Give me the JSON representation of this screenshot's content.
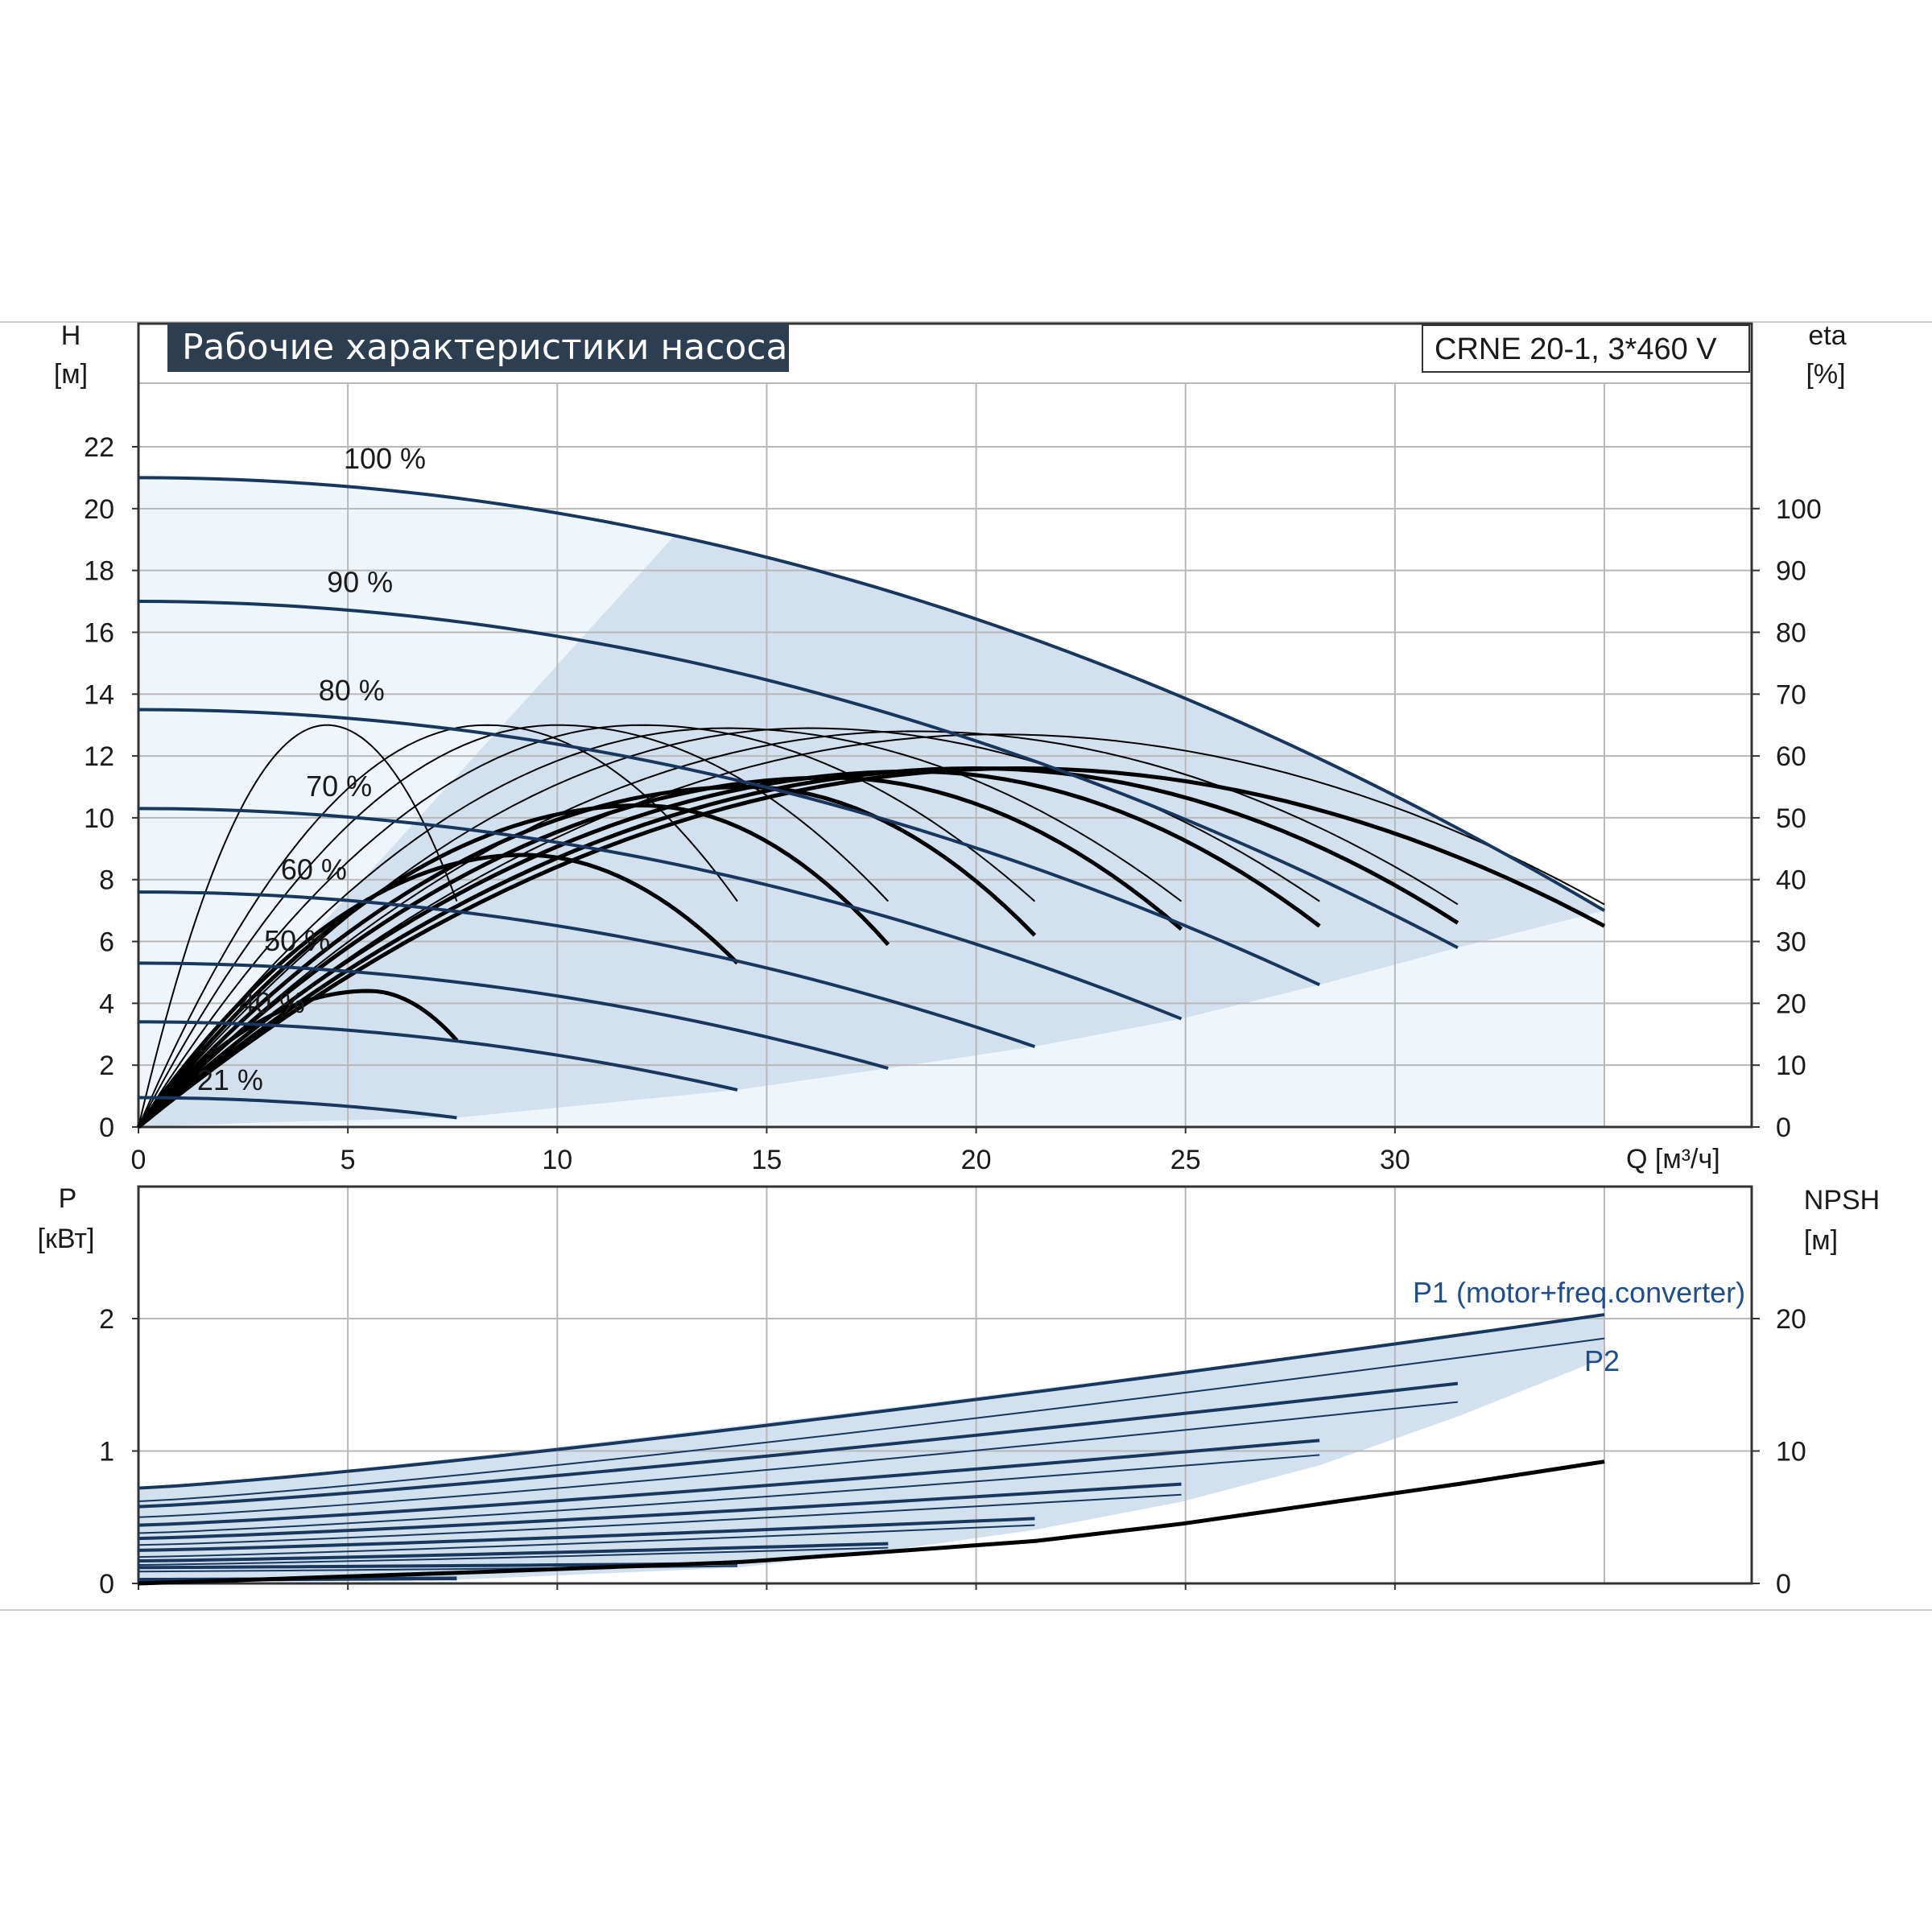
{
  "title": "Рабочие характеристики насоса",
  "model": "CRNE 20-1, 3*460 V",
  "colors": {
    "curve": "#17375e",
    "efficiency": "#000000",
    "band_light": "#eef6fc",
    "band_dark": "#d3e0ee",
    "grid": "#b8b8b8",
    "label": "#1f4e8c"
  },
  "chart_data": [
    {
      "type": "line",
      "xlabel": "Q [м³/ч]",
      "ylabel_name": "H",
      "ylabel_unit": "[м]",
      "y2label_name": "eta",
      "y2label_unit": "[%]",
      "xlim": [
        0,
        35
      ],
      "ylim": [
        0,
        22
      ],
      "y2lim": [
        0,
        100
      ],
      "x_ticks": [
        "0",
        "5",
        "10",
        "15",
        "20",
        "25",
        "30"
      ],
      "y_ticks": [
        "0",
        "2",
        "4",
        "6",
        "8",
        "10",
        "12",
        "14",
        "16",
        "18",
        "20",
        "22"
      ],
      "y2_ticks": [
        "0",
        "10",
        "20",
        "30",
        "40",
        "50",
        "60",
        "70",
        "80",
        "90",
        "100"
      ],
      "grid": true,
      "head_curves": [
        {
          "name": "100 %",
          "h0": 21.0,
          "qmax": 35.0,
          "hend": 7.0
        },
        {
          "name": "90 %",
          "h0": 17.0,
          "qmax": 31.5,
          "hend": 5.8
        },
        {
          "name": "80 %",
          "h0": 13.5,
          "qmax": 28.2,
          "hend": 4.6
        },
        {
          "name": "70 %",
          "h0": 10.3,
          "qmax": 24.9,
          "hend": 3.5
        },
        {
          "name": "60 %",
          "h0": 7.6,
          "qmax": 21.4,
          "hend": 2.6
        },
        {
          "name": "50 %",
          "h0": 5.3,
          "qmax": 17.9,
          "hend": 1.9
        },
        {
          "name": "40 %",
          "h0": 3.4,
          "qmax": 14.3,
          "hend": 1.2
        },
        {
          "name": "21 %",
          "h0": 0.95,
          "qmax": 7.6,
          "hend": 0.3
        }
      ],
      "efficiency_curves": [
        {
          "qpeak": 4.5,
          "peak": 13.0,
          "qend": 7.6,
          "hend": 7.3,
          "bold": false
        },
        {
          "qpeak": 8.3,
          "peak": 13.0,
          "qend": 14.3,
          "hend": 7.3,
          "bold": false
        },
        {
          "qpeak": 10.0,
          "peak": 13.0,
          "qend": 17.9,
          "hend": 7.3,
          "bold": false
        },
        {
          "qpeak": 12.0,
          "peak": 13.0,
          "qend": 21.4,
          "hend": 7.3,
          "bold": false
        },
        {
          "qpeak": 14.0,
          "peak": 12.9,
          "qend": 24.9,
          "hend": 7.3,
          "bold": false
        },
        {
          "qpeak": 16.0,
          "peak": 12.9,
          "qend": 28.2,
          "hend": 7.3,
          "bold": false
        },
        {
          "qpeak": 18.5,
          "peak": 12.8,
          "qend": 31.5,
          "hend": 7.2,
          "bold": false
        },
        {
          "qpeak": 20.5,
          "peak": 12.7,
          "qend": 35.0,
          "hend": 7.2,
          "bold": false
        },
        {
          "qpeak": 5.5,
          "peak": 4.4,
          "qend": 7.6,
          "hend": 2.8,
          "bold": true
        },
        {
          "qpeak": 9.2,
          "peak": 8.8,
          "qend": 14.3,
          "hend": 5.3,
          "bold": true
        },
        {
          "qpeak": 12.0,
          "peak": 10.4,
          "qend": 17.9,
          "hend": 5.9,
          "bold": true
        },
        {
          "qpeak": 14.5,
          "peak": 11.0,
          "qend": 21.4,
          "hend": 6.2,
          "bold": true
        },
        {
          "qpeak": 16.5,
          "peak": 11.3,
          "qend": 24.9,
          "hend": 6.4,
          "bold": true
        },
        {
          "qpeak": 18.5,
          "peak": 11.5,
          "qend": 28.2,
          "hend": 6.5,
          "bold": true
        },
        {
          "qpeak": 20.0,
          "peak": 11.6,
          "qend": 31.5,
          "hend": 6.6,
          "bold": true
        },
        {
          "qpeak": 21.0,
          "peak": 11.6,
          "qend": 35.0,
          "hend": 6.5,
          "bold": true
        }
      ]
    },
    {
      "type": "line",
      "xlim": [
        0,
        35
      ],
      "ylim": [
        0,
        3
      ],
      "y2lim": [
        0,
        30
      ],
      "ylabel_name": "P",
      "ylabel_unit": "[кВт]",
      "y2label_name": "NPSH",
      "y2label_unit": "[м]",
      "y_ticks": [
        "0",
        "1",
        "2"
      ],
      "y2_ticks": [
        "0",
        "10",
        "20"
      ],
      "grid": true,
      "series": [
        {
          "name": "P1 (motor+freq.converter)",
          "p0": [
            0.72,
            0.58,
            0.44,
            0.34,
            0.25,
            0.17,
            0.12,
            0.03
          ],
          "pend": [
            2.03,
            1.51,
            1.08,
            0.75,
            0.49,
            0.3,
            0.15,
            0.04
          ]
        },
        {
          "name": "P2",
          "p0": [
            0.62,
            0.5,
            0.38,
            0.29,
            0.2,
            0.14,
            0.09,
            0.02
          ],
          "pend": [
            1.85,
            1.37,
            0.97,
            0.67,
            0.44,
            0.27,
            0.13,
            0.03
          ]
        }
      ],
      "npsh": [
        {
          "q": [
            0,
            7.6,
            14.3,
            17.9,
            21.4,
            24.9,
            28.2,
            31.5,
            35.0
          ],
          "values": [
            0.0,
            0.8,
            1.6,
            2.4,
            3.2,
            4.5,
            6.0,
            7.5,
            9.2
          ]
        }
      ]
    }
  ]
}
